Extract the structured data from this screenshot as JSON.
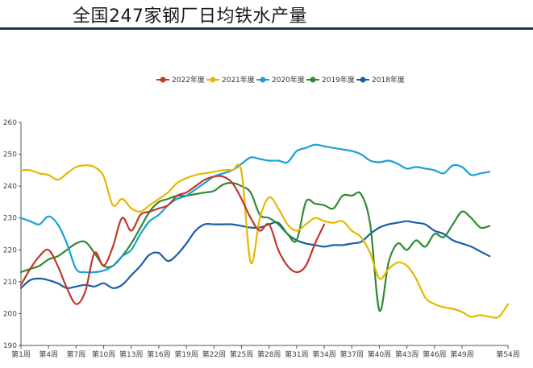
{
  "title": "全国247家钢厂日均铁水产量",
  "chart_data": {
    "type": "line",
    "title": "全国247家钢厂日均铁水产量",
    "xlabel": "",
    "ylabel": "",
    "ylim": [
      190,
      260
    ],
    "yticks": [
      190,
      200,
      210,
      220,
      230,
      240,
      250,
      260
    ],
    "x_range": [
      1,
      54
    ],
    "xticks": [
      "第1周",
      "第4周",
      "第7周",
      "第10周",
      "第13周",
      "第16周",
      "第19周",
      "第22周",
      "第25周",
      "第28周",
      "第31周",
      "第34周",
      "第37周",
      "第40周",
      "第43周",
      "第46周",
      "第49周",
      "第54周"
    ],
    "xtick_weeks": [
      1,
      4,
      7,
      10,
      13,
      16,
      19,
      22,
      25,
      28,
      31,
      34,
      37,
      40,
      43,
      46,
      49,
      54
    ],
    "legend_position": "top-center",
    "grid": false,
    "series": [
      {
        "name": "2022年度",
        "color": "#c0392b",
        "x": [
          1,
          2,
          3,
          4,
          5,
          6,
          7,
          8,
          9,
          10,
          11,
          12,
          13,
          14,
          15,
          16,
          17,
          18,
          19,
          20,
          21,
          22,
          23,
          24,
          25,
          26,
          27,
          28,
          29,
          30,
          31,
          32,
          33,
          34
        ],
        "values": [
          209,
          214,
          218,
          220,
          215,
          208,
          203,
          207,
          219,
          215,
          221,
          230,
          226,
          231,
          232,
          233,
          234,
          237,
          238,
          240,
          242,
          243,
          243,
          241,
          236,
          230,
          226,
          228,
          220,
          215,
          213,
          215,
          222,
          228
        ]
      },
      {
        "name": "2021年度",
        "color": "#e6b800",
        "x": [
          1,
          2,
          3,
          4,
          5,
          6,
          7,
          8,
          9,
          10,
          11,
          12,
          13,
          14,
          15,
          16,
          17,
          18,
          19,
          20,
          21,
          22,
          23,
          24,
          25,
          26,
          27,
          28,
          29,
          30,
          31,
          32,
          33,
          34,
          35,
          36,
          37,
          38,
          39,
          40,
          41,
          42,
          43,
          44,
          45,
          46,
          47,
          48,
          49,
          50,
          51,
          52,
          53,
          54
        ],
        "values": [
          245,
          245,
          244,
          243.5,
          242,
          244,
          246,
          246.5,
          246,
          243,
          234,
          236,
          233,
          232,
          234,
          236,
          238,
          241,
          242.5,
          243.5,
          244,
          244.5,
          245,
          245,
          244.5,
          216,
          230,
          236.5,
          233,
          228,
          226,
          228,
          230,
          229,
          228.5,
          229,
          226,
          224,
          219,
          211,
          214,
          216,
          215,
          211,
          205,
          203,
          202,
          201.5,
          200.5,
          199,
          199.5,
          199,
          199,
          203
        ]
      },
      {
        "name": "2020年度",
        "color": "#1a9fd6",
        "x": [
          1,
          2,
          3,
          4,
          5,
          6,
          7,
          8,
          9,
          10,
          11,
          12,
          13,
          14,
          15,
          16,
          17,
          18,
          19,
          20,
          21,
          22,
          23,
          24,
          25,
          26,
          27,
          28,
          29,
          30,
          31,
          32,
          33,
          34,
          35,
          36,
          37,
          38,
          39,
          40,
          41,
          42,
          43,
          44,
          45,
          46,
          47,
          48,
          49,
          50,
          51,
          52
        ],
        "values": [
          230,
          229,
          228,
          230.5,
          228,
          222,
          214,
          213,
          213,
          213.5,
          215,
          218,
          220,
          225,
          229,
          231,
          234,
          236,
          237,
          239,
          241,
          243,
          244,
          245,
          247,
          249,
          248.5,
          248,
          248,
          247.5,
          251,
          252,
          253,
          252.5,
          252,
          251.5,
          251,
          250,
          248,
          247.5,
          248,
          247,
          245.5,
          246,
          245.5,
          245,
          244,
          246.5,
          246,
          243.5,
          244,
          244.5
        ]
      },
      {
        "name": "2019年度",
        "color": "#2e8b2e",
        "x": [
          1,
          2,
          3,
          4,
          5,
          6,
          7,
          8,
          9,
          10,
          11,
          12,
          13,
          14,
          15,
          16,
          17,
          18,
          19,
          20,
          21,
          22,
          23,
          24,
          25,
          26,
          27,
          28,
          29,
          30,
          31,
          32,
          33,
          34,
          35,
          36,
          37,
          38,
          39,
          40,
          41,
          42,
          43,
          44,
          45,
          46,
          47,
          48,
          49,
          50,
          51,
          52
        ],
        "values": [
          213,
          214,
          215,
          217,
          218,
          220,
          222,
          222.5,
          219,
          215,
          215,
          218,
          222,
          227,
          232,
          235,
          236,
          237,
          237,
          237.5,
          238,
          238.5,
          240.5,
          241,
          240,
          238,
          231,
          230,
          228,
          225,
          223,
          235,
          234.5,
          234,
          233,
          237,
          237,
          237.5,
          228,
          201,
          216,
          222,
          220,
          223,
          221,
          225,
          224,
          228,
          232,
          230,
          227,
          227.5
        ]
      },
      {
        "name": "2018年度",
        "color": "#1b5fa6",
        "x": [
          1,
          2,
          3,
          4,
          5,
          6,
          7,
          8,
          9,
          10,
          11,
          12,
          13,
          14,
          15,
          16,
          17,
          18,
          19,
          20,
          21,
          22,
          23,
          24,
          25,
          26,
          27,
          28,
          29,
          30,
          31,
          32,
          33,
          34,
          35,
          36,
          37,
          38,
          39,
          40,
          41,
          42,
          43,
          44,
          45,
          46,
          47,
          48,
          49,
          50,
          51,
          52
        ],
        "values": [
          208,
          210.5,
          211,
          210.5,
          209.5,
          208,
          208.5,
          209,
          208.5,
          209.5,
          208,
          209,
          212,
          215,
          218.5,
          219,
          216.5,
          218.5,
          222,
          226,
          228,
          228,
          228,
          228,
          227.5,
          227,
          227,
          228,
          228.5,
          225,
          223,
          222,
          221.5,
          221,
          221.5,
          221.5,
          222,
          222.5,
          225,
          227,
          228,
          228.5,
          229,
          228.5,
          228,
          226,
          225,
          223,
          222,
          221,
          219.5,
          218
        ]
      }
    ]
  }
}
